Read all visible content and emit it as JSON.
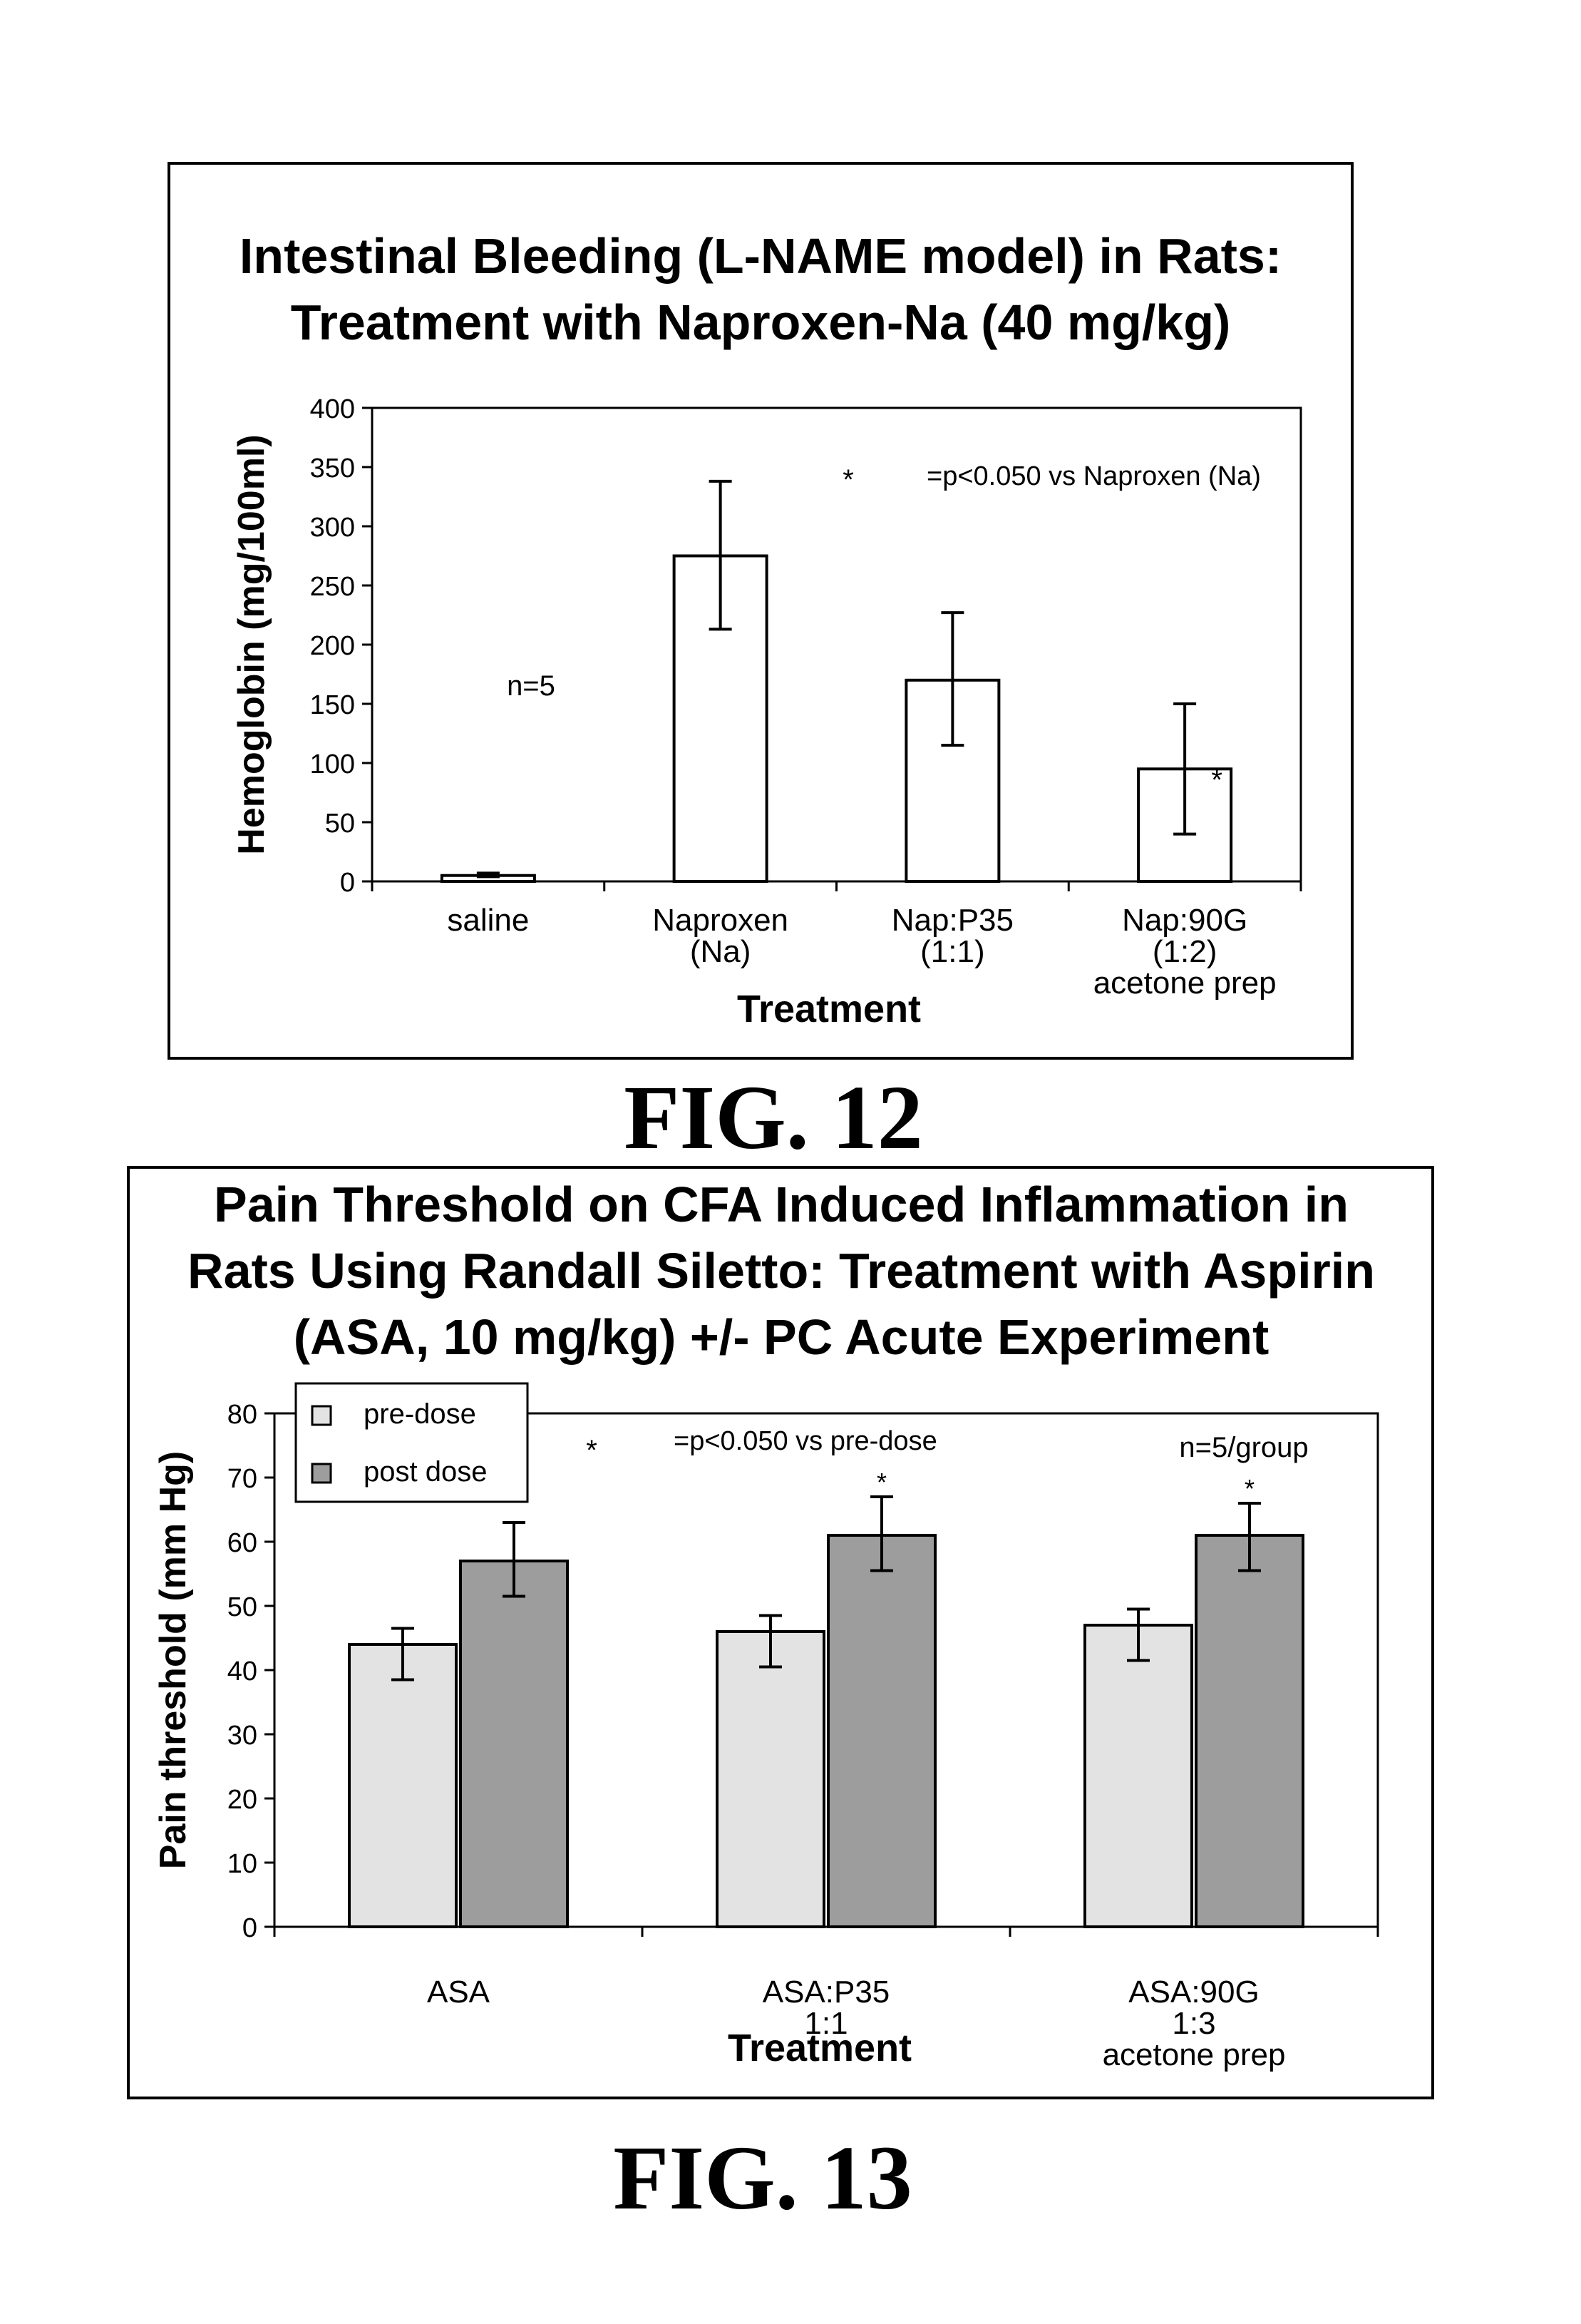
{
  "figures": [
    {
      "caption": "FIG. 12"
    },
    {
      "caption": "FIG. 13"
    }
  ],
  "colors": {
    "pre_dose": "#e3e3e3",
    "post_dose": "#9d9d9d",
    "bar_fill_fig12": "#ffffff"
  },
  "chart_data": [
    {
      "type": "bar",
      "title_lines": [
        "Intestinal Bleeding (L-NAME model) in Rats:",
        "Treatment with Naproxen-Na (40 mg/kg)"
      ],
      "xlabel": "Treatment",
      "ylabel": "Hemoglobin (mg/100ml)",
      "ylim": [
        0,
        400
      ],
      "yticks": [
        "0",
        "50",
        "100",
        "150",
        "200",
        "250",
        "300",
        "350",
        "400"
      ],
      "categories": [
        [
          "saline"
        ],
        [
          "Naproxen",
          "(Na)"
        ],
        [
          "Nap:P35",
          "(1:1)"
        ],
        [
          "Nap:90G",
          "(1:2)",
          "acetone prep"
        ]
      ],
      "values": [
        5,
        275,
        170,
        95
      ],
      "error_low": [
        4,
        213,
        115,
        40
      ],
      "error_high": [
        7,
        338,
        227,
        150
      ],
      "significance_marks": [
        "",
        "",
        "",
        "*"
      ],
      "annotations": {
        "n": "n=5",
        "legend_star": "*",
        "legend_text": "=p<0.050 vs Naproxen (Na)"
      },
      "grid": false,
      "legend": "none"
    },
    {
      "type": "bar",
      "title_lines": [
        "Pain Threshold on CFA Induced Inflammation in",
        "Rats Using Randall Siletto: Treatment with Aspirin",
        "(ASA, 10 mg/kg) +/- PC Acute Experiment"
      ],
      "xlabel": "Treatment",
      "ylabel": "Pain threshold (mm Hg)",
      "ylim": [
        0,
        80
      ],
      "yticks": [
        "0",
        "10",
        "20",
        "30",
        "40",
        "50",
        "60",
        "70",
        "80"
      ],
      "categories": [
        [
          "ASA"
        ],
        [
          "ASA:P35",
          "1:1"
        ],
        [
          "ASA:90G",
          "1:3",
          "acetone prep"
        ]
      ],
      "series": [
        {
          "name": "pre-dose",
          "values": [
            44,
            46,
            47
          ],
          "error_low": [
            38.5,
            40.5,
            41.5
          ],
          "error_high": [
            46.5,
            48.5,
            49.5
          ],
          "significance_marks": [
            "",
            "",
            ""
          ]
        },
        {
          "name": "post dose",
          "values": [
            57,
            61,
            61
          ],
          "error_low": [
            51.5,
            55.5,
            55.5
          ],
          "error_high": [
            63,
            67,
            66
          ],
          "significance_marks": [
            "",
            "*",
            "*"
          ]
        }
      ],
      "annotations": {
        "n": "n=5/group",
        "legend_star": "*",
        "legend_text": "=p<0.050 vs pre-dose"
      },
      "grid": false,
      "legend": "top-left"
    }
  ]
}
